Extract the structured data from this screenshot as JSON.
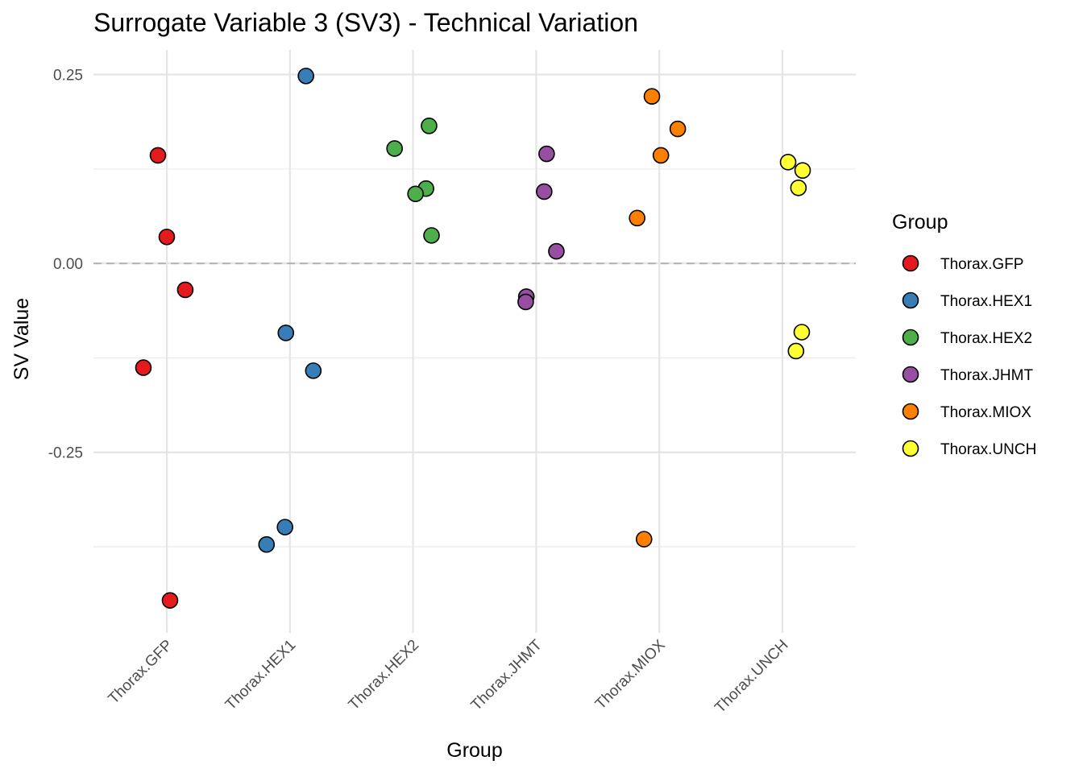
{
  "chart_data": {
    "type": "scatter",
    "title": "Surrogate Variable 3 (SV3) - Technical Variation",
    "xlabel": "Group",
    "ylabel": "SV Value",
    "categories": [
      "Thorax.GFP",
      "Thorax.HEX1",
      "Thorax.HEX2",
      "Thorax.JHMT",
      "Thorax.MIOX",
      "Thorax.UNCH"
    ],
    "ylim": [
      -0.489,
      0.2825
    ],
    "yticks": [
      0.25,
      0.0,
      -0.25
    ],
    "ytick_labels": [
      "0.25",
      "0.00",
      "-0.25"
    ],
    "minor_yticks": [
      0.125,
      -0.125,
      -0.375
    ],
    "reference_line": 0,
    "grid": true,
    "legend": {
      "title": "Group",
      "placement": "right"
    },
    "series": [
      {
        "name": "Thorax.GFP",
        "color": "#E41A1C",
        "points": [
          [
            0.928,
            0.143
          ],
          [
            1.0,
            0.035
          ],
          [
            1.15,
            -0.035
          ],
          [
            0.81,
            -0.138
          ],
          [
            1.026,
            -0.446
          ]
        ]
      },
      {
        "name": "Thorax.HEX1",
        "color": "#377EB8",
        "points": [
          [
            2.13,
            0.248
          ],
          [
            1.967,
            -0.092
          ],
          [
            2.19,
            -0.142
          ],
          [
            1.96,
            -0.349
          ],
          [
            1.81,
            -0.372
          ]
        ]
      },
      {
        "name": "Thorax.HEX2",
        "color": "#4DAF4A",
        "points": [
          [
            3.13,
            0.182
          ],
          [
            2.85,
            0.152
          ],
          [
            3.105,
            0.099
          ],
          [
            3.02,
            0.092
          ],
          [
            3.15,
            0.037
          ]
        ]
      },
      {
        "name": "Thorax.JHMT",
        "color": "#984EA3",
        "points": [
          [
            4.085,
            0.145
          ],
          [
            4.065,
            0.095
          ],
          [
            4.164,
            0.016
          ],
          [
            3.92,
            -0.044
          ],
          [
            3.915,
            -0.051
          ]
        ]
      },
      {
        "name": "Thorax.MIOX",
        "color": "#FF7F00",
        "points": [
          [
            4.94,
            0.221
          ],
          [
            5.15,
            0.178
          ],
          [
            5.013,
            0.143
          ],
          [
            4.82,
            0.06
          ],
          [
            4.876,
            -0.365
          ]
        ]
      },
      {
        "name": "Thorax.UNCH",
        "color": "#FFFF33",
        "points": [
          [
            6.046,
            0.134
          ],
          [
            6.164,
            0.123
          ],
          [
            6.13,
            0.1
          ],
          [
            6.157,
            -0.091
          ],
          [
            6.11,
            -0.116
          ]
        ]
      }
    ]
  }
}
